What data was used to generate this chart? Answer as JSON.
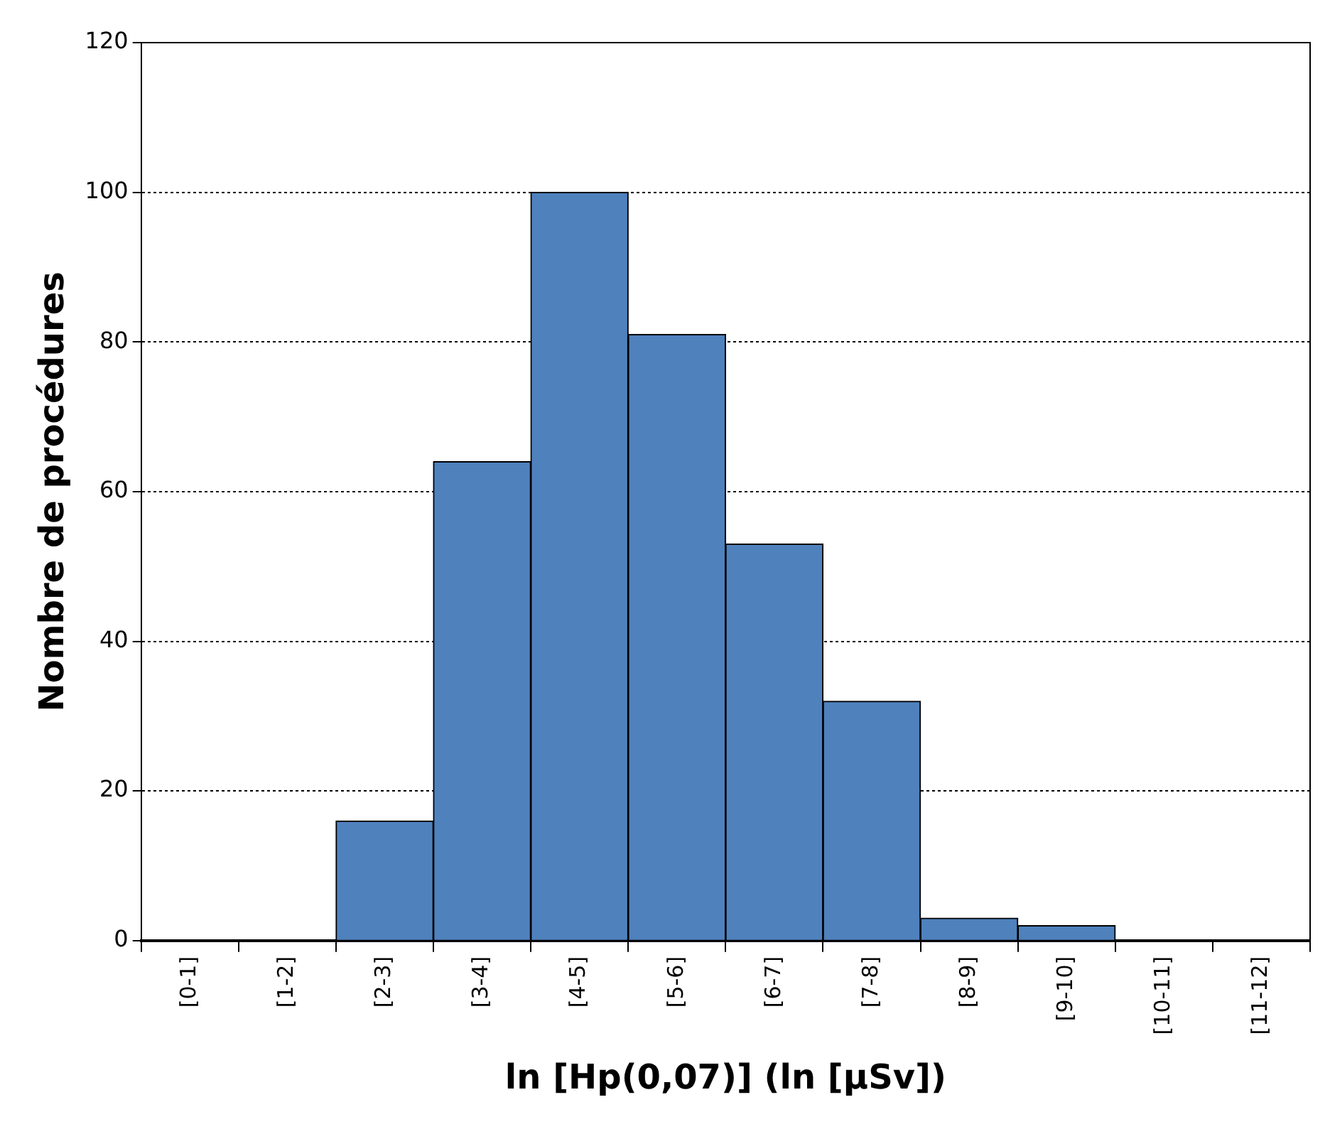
{
  "chart_data": {
    "type": "bar",
    "xlabel": "ln [Hp(0,07)] (ln [µSv])",
    "ylabel": "Nombre de procédures",
    "categories": [
      "[0-1]",
      "[1-2]",
      "[2-3]",
      "[3-4]",
      "[4-5]",
      "[5-6]",
      "[6-7]",
      "[7-8]",
      "[8-9]",
      "[9-10]",
      "[10-11]",
      "[11-12]"
    ],
    "values": [
      0,
      0,
      16,
      64,
      100,
      81,
      53,
      32,
      3,
      2,
      0,
      0
    ],
    "color": "#4f81bd",
    "ylim": [
      0,
      120
    ],
    "yticks": [
      0,
      20,
      40,
      60,
      80,
      100,
      120
    ],
    "grid": "y",
    "legend": false
  }
}
